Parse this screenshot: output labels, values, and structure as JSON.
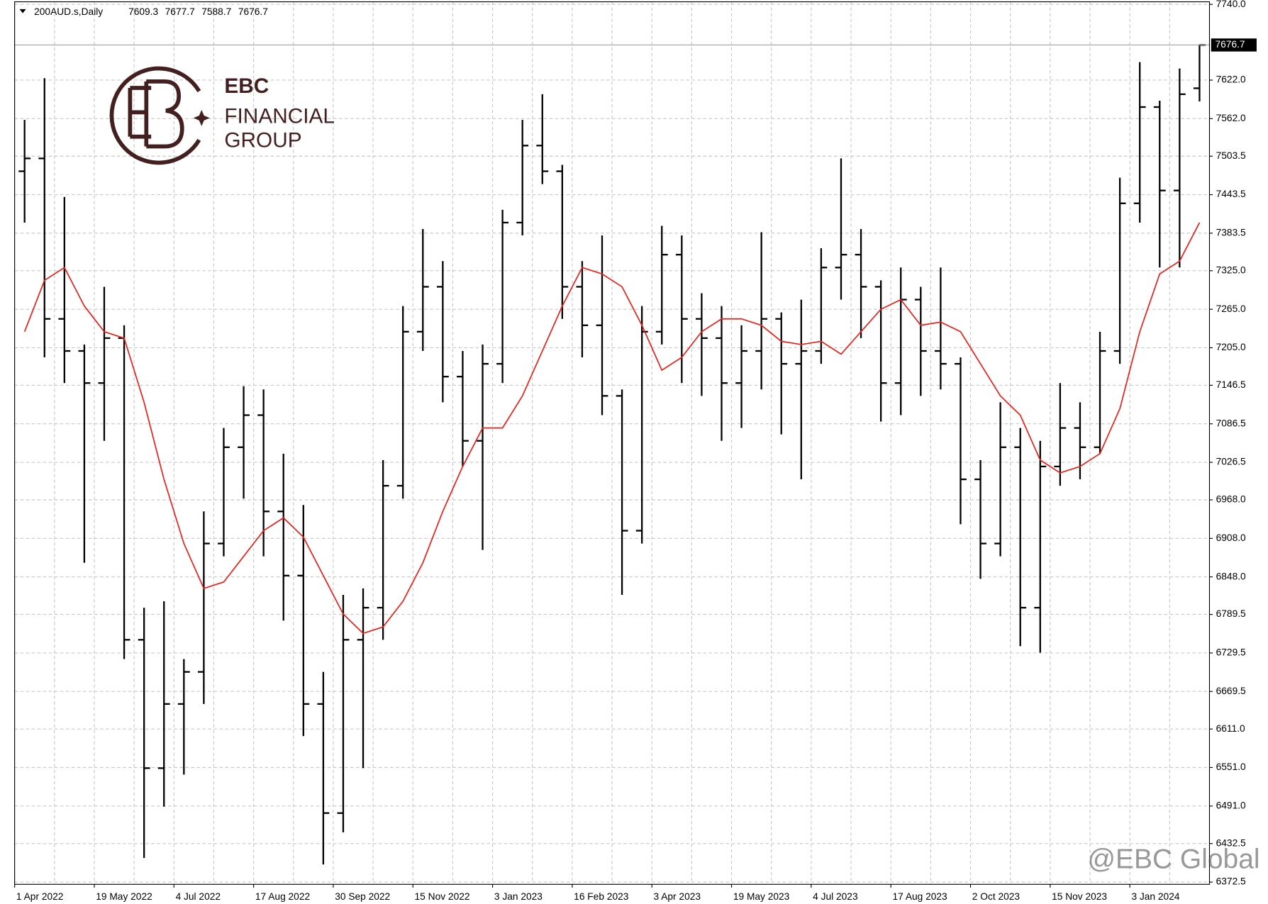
{
  "chart_data": {
    "type": "ohlc",
    "title": "200AUD.s,Daily",
    "logo": [
      "EBC",
      "FINANCIAL",
      "GROUP"
    ],
    "watermark": "@EBC Global",
    "categories": [
      "1 Apr 2022",
      null,
      null,
      null,
      "19 May 2022",
      null,
      null,
      null,
      "4 Jul 2022",
      null,
      null,
      null,
      "17 Aug 2022",
      null,
      null,
      null,
      "30 Sep 2022",
      null,
      null,
      null,
      "15 Nov 2022",
      null,
      null,
      null,
      "3 Jan 2023",
      null,
      null,
      null,
      "16 Feb 2023",
      null,
      null,
      null,
      "3 Apr 2023",
      null,
      null,
      null,
      "19 May 2023",
      null,
      null,
      null,
      "4 Jul 2023",
      null,
      null,
      null,
      "17 Aug 2023",
      null,
      null,
      null,
      "2 Oct 2023",
      null,
      null,
      null,
      "15 Nov 2023",
      null,
      null,
      null,
      "3 Jan 2024",
      null,
      null,
      null
    ],
    "ohlc": {
      "color": "#000000",
      "open": [
        7480,
        7500,
        7250,
        7200,
        7150,
        7220,
        6750,
        6550,
        6650,
        6700,
        6900,
        7050,
        7100,
        6950,
        6850,
        6650,
        6480,
        6750,
        6800,
        6990,
        7230,
        7300,
        7160,
        7060,
        7180,
        7400,
        7520,
        7480,
        7300,
        7240,
        7130,
        6920,
        7230,
        7350,
        7250,
        7220,
        7150,
        7200,
        7250,
        7180,
        7200,
        7330,
        7350,
        7300,
        7150,
        7280,
        7200,
        7180,
        7000,
        6900,
        7050,
        6800,
        7020,
        7080,
        7050,
        7200,
        7430,
        7580,
        7450,
        7609.3
      ],
      "high": [
        7560,
        7625,
        7440,
        7210,
        7300,
        7240,
        6800,
        6810,
        6720,
        6950,
        7080,
        7145,
        7140,
        7040,
        6960,
        6700,
        6820,
        6830,
        7030,
        7270,
        7390,
        7340,
        7200,
        7210,
        7420,
        7560,
        7600,
        7490,
        7340,
        7380,
        7140,
        7270,
        7395,
        7380,
        7290,
        7270,
        7240,
        7385,
        7260,
        7280,
        7360,
        7500,
        7390,
        7310,
        7330,
        7300,
        7330,
        7190,
        7030,
        7120,
        7080,
        7060,
        7150,
        7120,
        7230,
        7470,
        7650,
        7590,
        7640,
        7677.7
      ],
      "low": [
        7400,
        7190,
        7150,
        6870,
        7060,
        6720,
        6410,
        6490,
        6540,
        6650,
        6880,
        6970,
        6880,
        6780,
        6600,
        6400,
        6450,
        6550,
        6750,
        6970,
        7200,
        7120,
        7020,
        6890,
        7150,
        7380,
        7460,
        7250,
        7190,
        7100,
        6820,
        6900,
        7210,
        7150,
        7130,
        7060,
        7080,
        7140,
        7070,
        7000,
        7180,
        7280,
        7220,
        7090,
        7100,
        7130,
        7140,
        6930,
        6845,
        6880,
        6740,
        6730,
        6990,
        7000,
        7040,
        7180,
        7400,
        7330,
        7330,
        7588.7
      ],
      "close": [
        7500,
        7250,
        7200,
        7150,
        7220,
        6750,
        6550,
        6650,
        6700,
        6900,
        7050,
        7100,
        6950,
        6850,
        6650,
        6480,
        6750,
        6800,
        6990,
        7230,
        7300,
        7160,
        7060,
        7180,
        7400,
        7520,
        7480,
        7300,
        7240,
        7130,
        6920,
        7230,
        7350,
        7250,
        7220,
        7150,
        7200,
        7250,
        7180,
        7200,
        7330,
        7350,
        7300,
        7150,
        7280,
        7200,
        7180,
        7000,
        6900,
        7050,
        6800,
        7020,
        7080,
        7050,
        7200,
        7430,
        7580,
        7450,
        7600,
        7676.7
      ]
    },
    "ma": {
      "color": "#e8231c",
      "values": [
        7230,
        7310,
        7330,
        7270,
        7230,
        7220,
        7120,
        7000,
        6900,
        6830,
        6840,
        6880,
        6920,
        6940,
        6910,
        6850,
        6790,
        6760,
        6770,
        6810,
        6870,
        6950,
        7020,
        7080,
        7080,
        7130,
        7200,
        7270,
        7330,
        7320,
        7300,
        7240,
        7170,
        7190,
        7230,
        7250,
        7250,
        7240,
        7215,
        7210,
        7215,
        7195,
        7230,
        7265,
        7280,
        7240,
        7245,
        7230,
        7180,
        7130,
        7100,
        7030,
        7010,
        7020,
        7040,
        7110,
        7230,
        7320,
        7340,
        7400
      ]
    },
    "ylim": [
      6369,
      7744
    ],
    "yticks": [
      {
        "value": 7740,
        "label": "7740.0"
      },
      {
        "value": 7622,
        "label": "7622.0"
      },
      {
        "value": 7562,
        "label": "7562.0"
      },
      7503.5,
      7443.5,
      7383.5,
      {
        "value": 7325,
        "label": "7325.0"
      },
      {
        "value": 7265,
        "label": "7265.0"
      },
      {
        "value": 7205,
        "label": "7205.0"
      },
      7146.5,
      7086.5,
      7026.5,
      {
        "value": 6968,
        "label": "6968.0"
      },
      {
        "value": 6908,
        "label": "6908.0"
      },
      {
        "value": 6848,
        "label": "6848.0"
      },
      6789.5,
      6729.5,
      6669.5,
      {
        "value": 6611,
        "label": "6611.0"
      },
      {
        "value": 6551,
        "label": "6551.0"
      },
      {
        "value": 6491,
        "label": "6491.0"
      },
      6432.5,
      6372.5
    ],
    "grid": true
  }
}
